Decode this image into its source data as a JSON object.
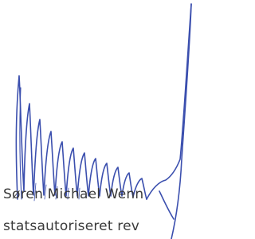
{
  "signature_block": {
    "name": "Søren Michael Wenn",
    "role": "statsautoriseret rev"
  }
}
